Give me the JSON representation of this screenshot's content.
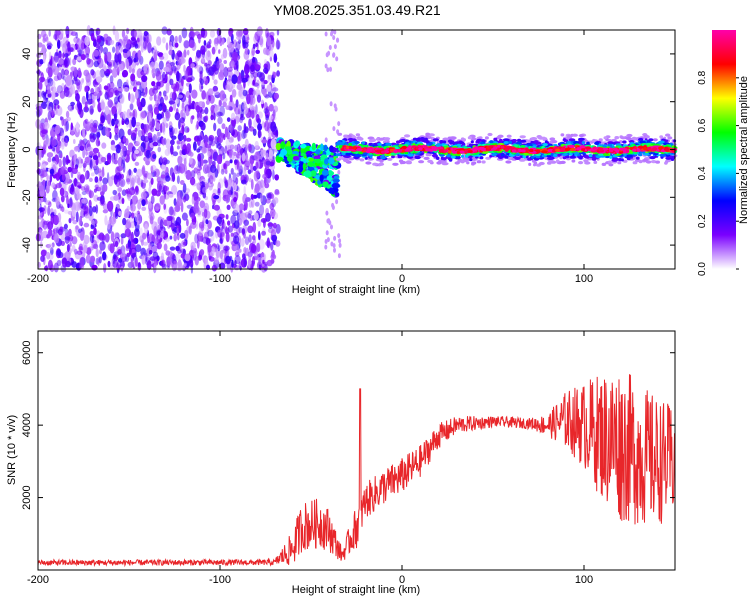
{
  "title": "YM08.2025.351.03.49.R21",
  "chart_data": [
    {
      "type": "heatmap",
      "xlabel": "Height of straight line (km)",
      "ylabel": "Frequency (Hz)",
      "xlim": [
        -200,
        150
      ],
      "ylim": [
        -50,
        50
      ],
      "xticks": [
        -200,
        -100,
        0,
        100
      ],
      "yticks": [
        40,
        20,
        0,
        -20,
        -40
      ],
      "colorbar": {
        "label": "Normalized spectral amplitude",
        "range": [
          0,
          1
        ],
        "ticks": [
          "0.0",
          "0.2",
          "0.4",
          "0.6",
          "0.8"
        ],
        "colors": [
          "#ffffff",
          "#7a00ff",
          "#0000ff",
          "#00ffff",
          "#00ff00",
          "#ffff00",
          "#ff0000",
          "#ff00aa"
        ]
      },
      "regions": [
        {
          "name": "noise",
          "x_range": [
            -200,
            -68
          ],
          "freq_range": [
            -50,
            50
          ],
          "level": 0.15
        },
        {
          "name": "onset",
          "x_range": [
            -68,
            -35
          ],
          "freq_center": [
            0,
            -15
          ],
          "level": 0.45
        },
        {
          "name": "signal-band",
          "x_range": [
            -35,
            150
          ],
          "freq_center": 0,
          "level": 0.95
        }
      ]
    },
    {
      "type": "line",
      "xlabel": "Height of straight line (km)",
      "ylabel": "SNR (10 * v/v)",
      "xlim": [
        -200,
        150
      ],
      "ylim": [
        0,
        6600
      ],
      "xticks": [
        -200,
        -100,
        0,
        100
      ],
      "yticks": [
        2000,
        4000,
        6000
      ],
      "color": "#e8262a",
      "envelope": {
        "x": [
          -200,
          -70,
          -60,
          -55,
          -45,
          -40,
          -33,
          -25,
          -20,
          -10,
          0,
          10,
          20,
          30,
          50,
          70,
          80,
          90,
          100,
          110,
          120,
          130,
          140,
          150
        ],
        "y": [
          200,
          210,
          600,
          1200,
          1300,
          1100,
          400,
          1200,
          1900,
          2300,
          2600,
          3000,
          3700,
          4000,
          4100,
          4050,
          4000,
          4150,
          4000,
          3700,
          3500,
          3200,
          3000,
          3000
        ],
        "jitter": [
          80,
          80,
          500,
          700,
          700,
          600,
          200,
          600,
          500,
          500,
          500,
          450,
          350,
          250,
          150,
          150,
          300,
          800,
          1200,
          1800,
          2200,
          2000,
          1800,
          1500
        ]
      },
      "spikes": [
        {
          "x": -23,
          "y": 5000
        }
      ]
    }
  ]
}
